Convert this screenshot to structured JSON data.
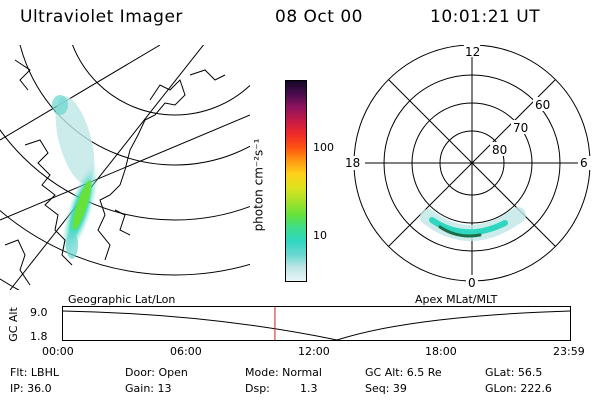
{
  "header": {
    "title": "Ultraviolet Imager",
    "date": "08 Oct 00",
    "time": "10:01:21 UT"
  },
  "colors": {
    "background": "#ffffff",
    "foreground": "#000000",
    "time_marker": "#cc2222"
  },
  "geo_panel": {
    "label": "Geographic Lat/Lon"
  },
  "colorbar": {
    "unit_label": "photon cm⁻²s⁻¹",
    "ticks": [
      "100",
      "10"
    ],
    "scale": "log",
    "colors": [
      "#e9f5f7",
      "#bfe6e6",
      "#68d7d0",
      "#2fd7c0",
      "#3ddd8a",
      "#67e23a",
      "#a7e12a",
      "#dde21e",
      "#ffd11a",
      "#ff9a13",
      "#ff5311",
      "#ef2a2a",
      "#c51a45",
      "#8f145d",
      "#4a0b4e",
      "#150726"
    ]
  },
  "polar_panel": {
    "label": "Apex MLat/MLT",
    "mlt_labels": [
      "12",
      "18",
      "6",
      "0"
    ],
    "mlat_labels": [
      "60",
      "70",
      "80"
    ]
  },
  "timeline": {
    "y_axis_label": "GC Alt",
    "y_ticks": [
      "9.0",
      "1.8"
    ],
    "x_ticks": [
      "00:00",
      "06:00",
      "12:00",
      "18:00",
      "23:59"
    ],
    "current_time_fraction": 0.418
  },
  "info": {
    "filter": "Flt: LBHL",
    "ip": "IP: 36.0",
    "door": "Door: Open",
    "gain": "Gain: 13",
    "mode": "Mode: Normal",
    "dsp_label": "Dsp:",
    "dsp_value": "1.3",
    "gc_alt": "GC Alt: 6.5 Re",
    "seq": "Seq: 39",
    "glat": "GLat:  56.5",
    "glon": "GLon: 222.6"
  }
}
